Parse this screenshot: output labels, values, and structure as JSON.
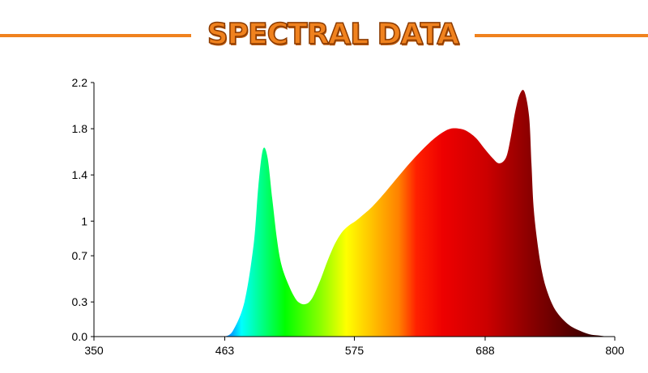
{
  "title": "SPECTRAL DATA",
  "colors": {
    "title": "#f0821e",
    "title_outline": "#8a3a00",
    "rule": "#f0821e"
  },
  "chart_data": {
    "type": "area",
    "title": "SPECTRAL DATA",
    "xlabel": "",
    "ylabel": "",
    "xlim": [
      350,
      800
    ],
    "ylim": [
      0,
      2.2
    ],
    "x_ticks": [
      "350",
      "463",
      "575",
      "688",
      "800"
    ],
    "y_ticks": [
      "0.0",
      "0.3",
      "0.7",
      "1",
      "1.4",
      "1.8",
      "2.2"
    ],
    "grid": false,
    "legend": "none",
    "fill": "visible-spectrum gradient",
    "series": [
      {
        "x": [
          463,
          470,
          480,
          488,
          492,
          496,
          500,
          504,
          508,
          512,
          518,
          524,
          528,
          532,
          536,
          540,
          546,
          552,
          558,
          564,
          570,
          576,
          582,
          590,
          600,
          610,
          620,
          630,
          640,
          650,
          658,
          666,
          672,
          680,
          688,
          694,
          700,
          706,
          710,
          714,
          718,
          722,
          726,
          728,
          730,
          734,
          738,
          742,
          746,
          750,
          756,
          762,
          770,
          778,
          786,
          794,
          800
        ],
        "y": [
          0.0,
          0.05,
          0.3,
          0.8,
          1.3,
          1.62,
          1.55,
          1.2,
          0.85,
          0.62,
          0.45,
          0.33,
          0.29,
          0.28,
          0.3,
          0.36,
          0.5,
          0.66,
          0.8,
          0.9,
          0.96,
          1.0,
          1.05,
          1.12,
          1.23,
          1.35,
          1.47,
          1.58,
          1.68,
          1.76,
          1.8,
          1.8,
          1.78,
          1.72,
          1.62,
          1.55,
          1.5,
          1.55,
          1.72,
          1.95,
          2.1,
          2.12,
          1.9,
          1.5,
          1.1,
          0.75,
          0.52,
          0.38,
          0.28,
          0.21,
          0.14,
          0.09,
          0.05,
          0.02,
          0.01,
          0.0,
          0.0
        ]
      }
    ]
  }
}
